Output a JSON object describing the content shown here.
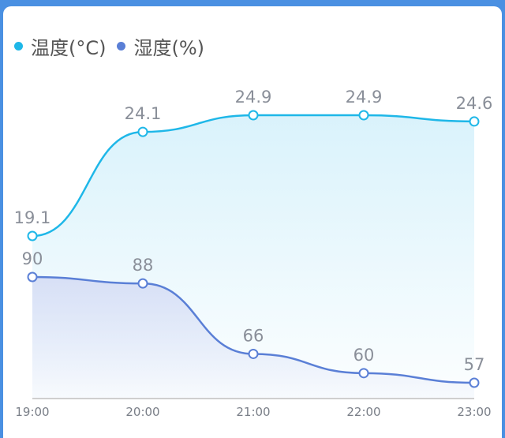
{
  "chart_data": {
    "type": "area",
    "categories": [
      "19:00",
      "20:00",
      "21:00",
      "22:00",
      "23:00"
    ],
    "series": [
      {
        "name": "温度(°C)",
        "values": [
          19.1,
          24.1,
          24.9,
          24.9,
          24.6
        ],
        "labels": [
          "19.1",
          "24.1",
          "24.9",
          "24.9",
          "24.6"
        ],
        "color": "#1eb7e8"
      },
      {
        "name": "湿度(%)",
        "values": [
          90,
          88,
          66,
          60,
          57
        ],
        "labels": [
          "90",
          "88",
          "66",
          "60",
          "57"
        ],
        "color": "#5a7fd6"
      }
    ],
    "legend_position": "top-left",
    "grid": false
  }
}
